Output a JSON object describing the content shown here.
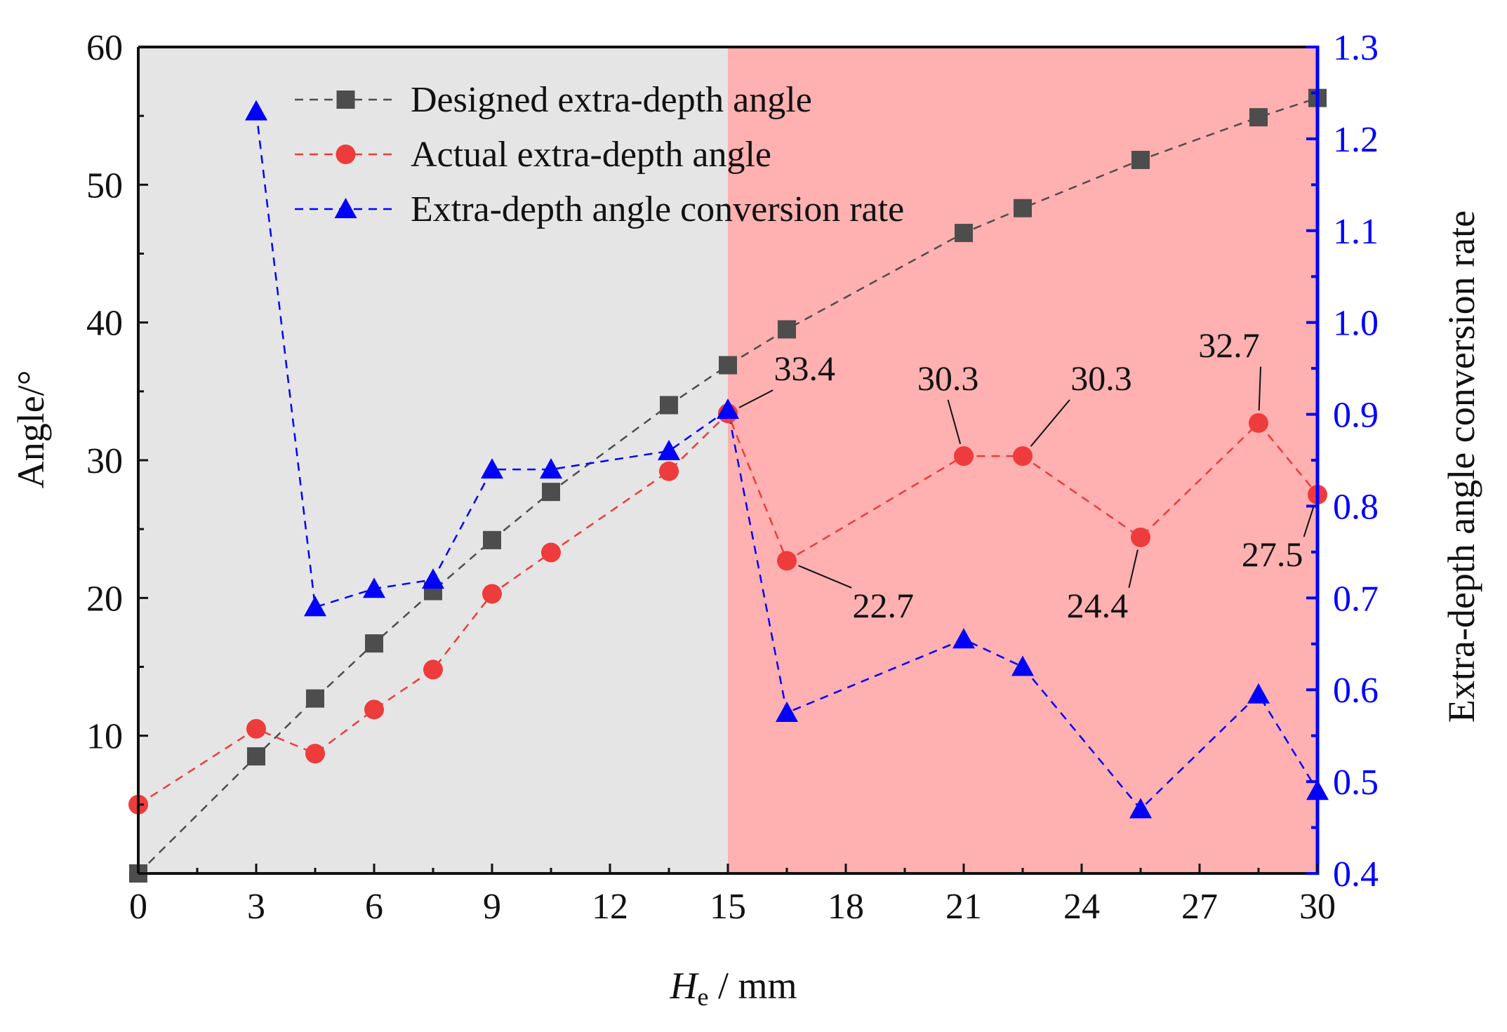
{
  "chart_data": {
    "type": "line",
    "x_axis": {
      "label_italic": "H",
      "label_sub": "e",
      "label_unit": " / mm",
      "min": 0,
      "max": 30,
      "ticks": [
        0,
        3,
        6,
        9,
        12,
        15,
        18,
        21,
        24,
        27,
        30
      ]
    },
    "y_axis_left": {
      "label": "Angle/°",
      "min": 0,
      "max": 60,
      "ticks": [
        10,
        20,
        30,
        40,
        50,
        60
      ]
    },
    "y_axis_right": {
      "label": "Extra-depth angle conversion rate",
      "min": 0.4,
      "max": 1.3,
      "ticks": [
        "0.4",
        "0.5",
        "0.6",
        "0.7",
        "0.8",
        "0.9",
        "1.0",
        "1.1",
        "1.2",
        "1.3"
      ],
      "color": "#0000ff"
    },
    "regions": [
      {
        "x_from": 0,
        "x_to": 15,
        "color": "#e5e5e5"
      },
      {
        "x_from": 15,
        "x_to": 30,
        "color": "#ffb0b0"
      }
    ],
    "series": [
      {
        "name": "Designed extra-depth angle",
        "axis": "left",
        "marker": "square",
        "color": "#4d4d4d",
        "x": [
          0,
          3,
          4.5,
          6,
          7.5,
          9,
          10.5,
          13.5,
          15,
          16.5,
          21,
          22.5,
          25.5,
          28.5,
          30
        ],
        "values": [
          0,
          8.5,
          12.7,
          16.7,
          20.5,
          24.2,
          27.7,
          34.0,
          36.9,
          39.5,
          46.5,
          48.3,
          51.8,
          54.9,
          56.3
        ]
      },
      {
        "name": "Actual extra-depth angle",
        "axis": "left",
        "marker": "circle",
        "color": "#ee3b3b",
        "x": [
          0,
          3,
          4.5,
          6,
          7.5,
          9,
          10.5,
          13.5,
          15,
          16.5,
          21,
          22.5,
          25.5,
          28.5,
          30
        ],
        "values": [
          5.0,
          10.5,
          8.7,
          11.9,
          14.8,
          20.3,
          23.3,
          29.2,
          33.4,
          22.7,
          30.3,
          30.3,
          24.4,
          32.7,
          27.5
        ]
      },
      {
        "name": "Extra-depth angle conversion rate",
        "axis": "right",
        "marker": "triangle",
        "color": "#0000ff",
        "x": [
          3,
          4.5,
          6,
          7.5,
          9,
          10.5,
          13.5,
          15,
          16.5,
          21,
          22.5,
          25.5,
          28.5,
          30
        ],
        "values": [
          1.23,
          0.69,
          0.71,
          0.72,
          0.84,
          0.84,
          0.86,
          0.905,
          0.575,
          0.655,
          0.625,
          0.47,
          0.595,
          0.49
        ]
      }
    ],
    "annotations": [
      {
        "text": "33.4",
        "x": 15,
        "y": 33.4,
        "label_x": 16.95,
        "label_y": 35.8
      },
      {
        "text": "22.7",
        "x": 16.5,
        "y": 22.7,
        "label_x": 18.95,
        "label_y": 18.6
      },
      {
        "text": "30.3",
        "x": 21,
        "y": 30.3,
        "label_x": 20.6,
        "label_y": 35.1
      },
      {
        "text": "30.3",
        "x": 22.5,
        "y": 30.3,
        "label_x": 24.5,
        "label_y": 35.1
      },
      {
        "text": "24.4",
        "x": 25.5,
        "y": 24.4,
        "label_x": 24.4,
        "label_y": 18.6
      },
      {
        "text": "32.7",
        "x": 28.5,
        "y": 32.7,
        "label_x": 27.75,
        "label_y": 37.5
      },
      {
        "text": "27.5",
        "x": 30,
        "y": 27.5,
        "label_x": 28.85,
        "label_y": 22.3
      }
    ]
  }
}
